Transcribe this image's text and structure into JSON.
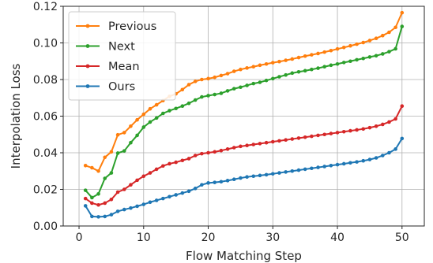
{
  "chart_data": {
    "type": "line",
    "xlabel": "Flow Matching Step",
    "ylabel": "Interpolation Loss",
    "xlim": [
      -2.45,
      53.45
    ],
    "ylim": [
      0.0,
      0.12
    ],
    "xticks": [
      0,
      10,
      20,
      30,
      40,
      50
    ],
    "yticks": [
      0.0,
      0.02,
      0.04,
      0.06,
      0.08,
      0.1,
      0.12
    ],
    "xtick_labels": [
      "0",
      "10",
      "20",
      "30",
      "40",
      "50"
    ],
    "ytick_labels": [
      "0.00",
      "0.02",
      "0.04",
      "0.06",
      "0.08",
      "0.10",
      "0.12"
    ],
    "grid": true,
    "legend_position": "top-left",
    "x": [
      1,
      2,
      3,
      4,
      5,
      6,
      7,
      8,
      9,
      10,
      11,
      12,
      13,
      14,
      15,
      16,
      17,
      18,
      19,
      20,
      21,
      22,
      23,
      24,
      25,
      26,
      27,
      28,
      29,
      30,
      31,
      32,
      33,
      34,
      35,
      36,
      37,
      38,
      39,
      40,
      41,
      42,
      43,
      44,
      45,
      46,
      47,
      48,
      49,
      50
    ],
    "series": [
      {
        "name": "Previous",
        "color": "#ff7f0e",
        "values": [
          0.033,
          0.0318,
          0.03,
          0.0375,
          0.0405,
          0.0498,
          0.051,
          0.0545,
          0.058,
          0.061,
          0.064,
          0.0662,
          0.0685,
          0.0708,
          0.0722,
          0.0745,
          0.0772,
          0.079,
          0.08,
          0.0805,
          0.0812,
          0.0822,
          0.0832,
          0.0845,
          0.0855,
          0.0863,
          0.087,
          0.0878,
          0.0885,
          0.0892,
          0.0898,
          0.0905,
          0.0912,
          0.092,
          0.0928,
          0.0935,
          0.0942,
          0.095,
          0.0958,
          0.0967,
          0.0975,
          0.0984,
          0.0993,
          0.1002,
          0.1013,
          0.1025,
          0.104,
          0.1058,
          0.1085,
          0.1165
        ]
      },
      {
        "name": "Next",
        "color": "#2ca02c",
        "values": [
          0.0195,
          0.0155,
          0.0175,
          0.026,
          0.029,
          0.0398,
          0.041,
          0.0455,
          0.0495,
          0.054,
          0.0568,
          0.059,
          0.0615,
          0.063,
          0.0642,
          0.0655,
          0.067,
          0.0688,
          0.0705,
          0.0712,
          0.0718,
          0.0725,
          0.0738,
          0.075,
          0.0758,
          0.0768,
          0.0778,
          0.0785,
          0.0795,
          0.0805,
          0.0815,
          0.0825,
          0.0835,
          0.0842,
          0.0848,
          0.0855,
          0.0862,
          0.087,
          0.0878,
          0.0885,
          0.0893,
          0.09,
          0.0908,
          0.0915,
          0.0923,
          0.093,
          0.094,
          0.0952,
          0.0968,
          0.109
        ]
      },
      {
        "name": "Mean",
        "color": "#d62728",
        "values": [
          0.015,
          0.0125,
          0.0115,
          0.0125,
          0.0145,
          0.0185,
          0.02,
          0.0225,
          0.025,
          0.0272,
          0.029,
          0.031,
          0.0328,
          0.034,
          0.0348,
          0.0358,
          0.0368,
          0.0385,
          0.0395,
          0.04,
          0.0405,
          0.0412,
          0.042,
          0.0428,
          0.0435,
          0.044,
          0.0445,
          0.045,
          0.0455,
          0.046,
          0.0465,
          0.047,
          0.0475,
          0.048,
          0.0485,
          0.049,
          0.0495,
          0.05,
          0.0505,
          0.051,
          0.0515,
          0.052,
          0.0525,
          0.053,
          0.0537,
          0.0545,
          0.0555,
          0.0568,
          0.0585,
          0.0655
        ]
      },
      {
        "name": "Ours",
        "color": "#1f77b4",
        "values": [
          0.011,
          0.0052,
          0.005,
          0.0052,
          0.0062,
          0.008,
          0.009,
          0.0098,
          0.0108,
          0.0118,
          0.013,
          0.014,
          0.015,
          0.016,
          0.017,
          0.018,
          0.019,
          0.0205,
          0.0225,
          0.0235,
          0.0238,
          0.0242,
          0.0248,
          0.0255,
          0.0262,
          0.0268,
          0.0272,
          0.0276,
          0.028,
          0.0285,
          0.029,
          0.0295,
          0.03,
          0.0305,
          0.031,
          0.0315,
          0.032,
          0.0325,
          0.033,
          0.0335,
          0.034,
          0.0345,
          0.035,
          0.0356,
          0.0363,
          0.0372,
          0.0385,
          0.04,
          0.042,
          0.0478
        ]
      }
    ]
  }
}
